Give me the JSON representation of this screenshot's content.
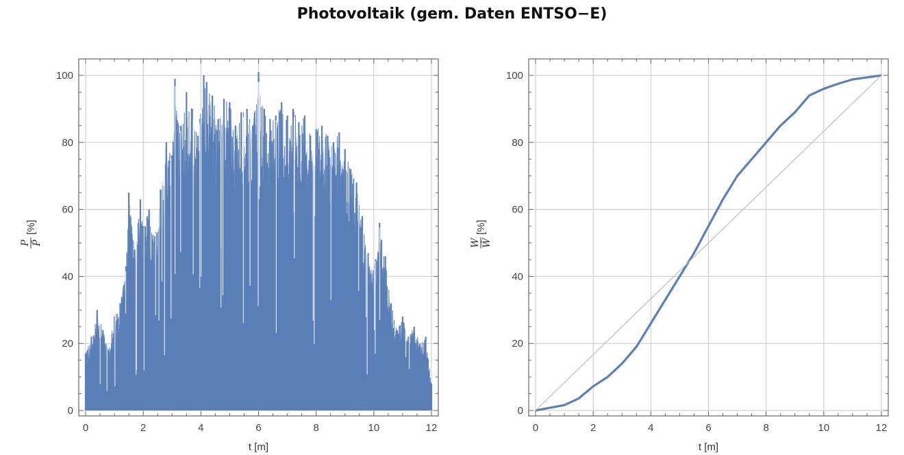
{
  "title": "Photovoltaik (gem. Daten ENTSO−E)",
  "colors": {
    "series": "#5b7fb8",
    "grid": "#c8c8c8",
    "frame": "#666666",
    "diagonal": "#bdbdbd"
  },
  "chart_data": [
    {
      "type": "area",
      "title": "",
      "xlabel": "t [m]",
      "ylabel": {
        "numerator": "P",
        "denominator": "P̂",
        "unit": "[%]"
      },
      "xlim": [
        0,
        12
      ],
      "ylim": [
        0,
        100
      ],
      "xticks": [
        0,
        2,
        4,
        6,
        8,
        10,
        12
      ],
      "yticks": [
        0,
        20,
        40,
        60,
        80,
        100
      ],
      "grid": true,
      "series": [
        {
          "note_kind": "daily maximum envelope of hourly PV output",
          "x": [
            0,
            0.2,
            0.4,
            0.6,
            0.8,
            1.0,
            1.2,
            1.4,
            1.5,
            1.7,
            1.9,
            2.0,
            2.2,
            2.4,
            2.6,
            2.8,
            3.0,
            3.1,
            3.3,
            3.5,
            3.7,
            3.9,
            4.1,
            4.2,
            4.4,
            4.6,
            4.8,
            5.0,
            5.2,
            5.4,
            5.6,
            5.8,
            6.0,
            6.2,
            6.4,
            6.6,
            6.8,
            7.0,
            7.2,
            7.4,
            7.6,
            7.8,
            8.0,
            8.2,
            8.4,
            8.6,
            8.8,
            9.0,
            9.2,
            9.4,
            9.6,
            9.8,
            10.0,
            10.2,
            10.4,
            10.6,
            10.8,
            11.0,
            11.2,
            11.4,
            11.6,
            11.8,
            12.0
          ],
          "y": [
            17,
            22,
            30,
            24,
            18,
            28,
            32,
            43,
            65,
            48,
            63,
            55,
            60,
            52,
            66,
            80,
            76,
            99,
            85,
            95,
            90,
            82,
            100,
            98,
            94,
            87,
            93,
            92,
            85,
            89,
            90,
            85,
            101,
            90,
            87,
            88,
            92,
            88,
            90,
            86,
            88,
            82,
            84,
            85,
            82,
            80,
            83,
            78,
            72,
            68,
            58,
            47,
            42,
            56,
            46,
            32,
            24,
            28,
            22,
            25,
            20,
            22,
            8
          ]
        }
      ]
    },
    {
      "type": "line",
      "title": "",
      "xlabel": "t [m]",
      "ylabel": {
        "numerator": "W",
        "denominator": "Ŵ",
        "unit": "[%]"
      },
      "xlim": [
        0,
        12
      ],
      "ylim": [
        0,
        100
      ],
      "xticks": [
        0,
        2,
        4,
        6,
        8,
        10,
        12
      ],
      "yticks": [
        0,
        20,
        40,
        60,
        80,
        100
      ],
      "grid": true,
      "series": [
        {
          "x": [
            0,
            0.5,
            1,
            1.5,
            2,
            2.5,
            3,
            3.5,
            4,
            4.5,
            5,
            5.5,
            6,
            6.5,
            7,
            7.5,
            8,
            8.5,
            9,
            9.5,
            10,
            10.5,
            11,
            11.5,
            12
          ],
          "y": [
            0,
            0.8,
            1.6,
            3.6,
            7.2,
            10,
            14,
            19,
            26,
            33,
            40,
            47,
            55,
            63,
            70,
            75,
            80,
            85,
            89,
            94,
            96,
            97.5,
            98.8,
            99.4,
            100
          ]
        },
        {
          "x": [
            0,
            12
          ],
          "y": [
            0,
            100
          ],
          "reference": true
        }
      ]
    }
  ]
}
